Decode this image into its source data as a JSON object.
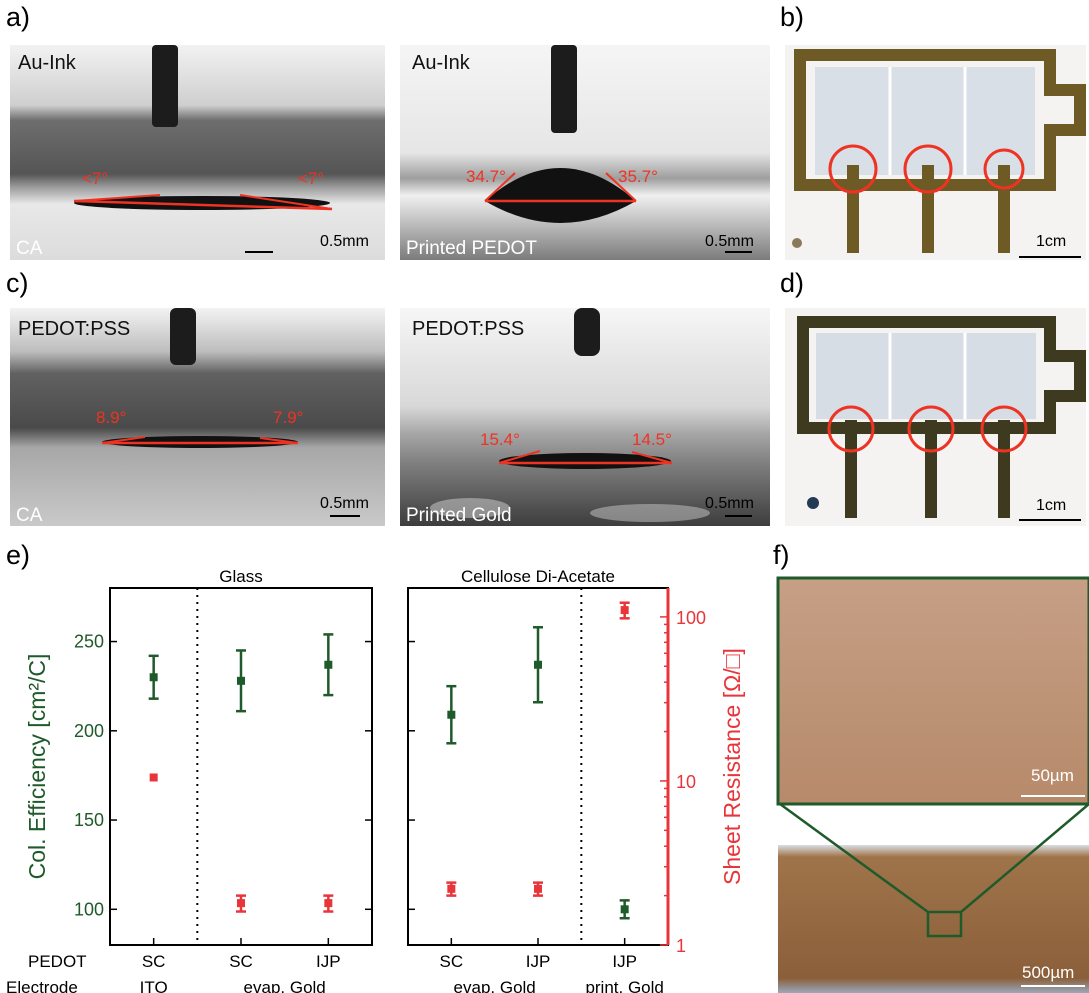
{
  "panels": {
    "a": {
      "letter": "a)",
      "left": {
        "label": "Au-Ink",
        "substrate": "CA",
        "angle_left": "<7°",
        "angle_right": "<7°",
        "scale": "0.5mm"
      },
      "right": {
        "label": "Au-Ink",
        "substrate": "Printed PEDOT",
        "angle_left": "34.7°",
        "angle_right": "35.7°",
        "scale": "0.5mm"
      }
    },
    "b": {
      "letter": "b)",
      "scale": "1cm"
    },
    "c": {
      "letter": "c)",
      "left": {
        "label": "PEDOT:PSS",
        "substrate": "CA",
        "angle_left": "8.9°",
        "angle_right": "7.9°",
        "scale": "0.5mm"
      },
      "right": {
        "label": "PEDOT:PSS",
        "substrate": "Printed Gold",
        "angle_left": "15.4°",
        "angle_right": "14.5°",
        "scale": "0.5mm"
      }
    },
    "d": {
      "letter": "d)",
      "scale": "1cm"
    },
    "e": {
      "letter": "e)"
    },
    "f": {
      "letter": "f)",
      "scale_top": "50µm",
      "scale_bottom": "500µm"
    }
  },
  "colors": {
    "efficiency": "#1f5a2a",
    "resistance": "#e8353a",
    "angle": "#ee3322"
  },
  "chart_data": [
    {
      "type": "scatter",
      "title": "Glass",
      "ylabel": "Col. Efficiency [cm²/C]",
      "ylim": [
        80,
        280
      ],
      "yticks": [
        100,
        150,
        200,
        250
      ],
      "y2label": "Sheet Resistance [Ω/□]",
      "y2scale": "log",
      "y2lim": [
        1,
        150
      ],
      "y2ticks": [
        1,
        10,
        100
      ],
      "row_labels": [
        "PEDOT",
        "Electrode"
      ],
      "categories": [
        {
          "pedot": "SC",
          "electrode": "ITO"
        },
        {
          "pedot": "SC",
          "electrode": "evap. Gold"
        },
        {
          "pedot": "IJP",
          "electrode": ""
        }
      ],
      "separators_after": [
        0
      ],
      "series": [
        {
          "axis": "left",
          "color": "#1f5a2a",
          "values": [
            230,
            228,
            237
          ],
          "errors": [
            12,
            17,
            17
          ]
        },
        {
          "axis": "right",
          "color": "#e8353a",
          "values": [
            10.5,
            1.8,
            1.8
          ],
          "errors": [
            0,
            0.2,
            0.2
          ]
        }
      ]
    },
    {
      "type": "scatter",
      "title": "Cellulose Di-Acetate",
      "ylim": [
        80,
        280
      ],
      "y2scale": "log",
      "y2lim": [
        1,
        150
      ],
      "categories": [
        {
          "pedot": "SC",
          "electrode": "evap. Gold"
        },
        {
          "pedot": "IJP",
          "electrode": ""
        },
        {
          "pedot": "IJP",
          "electrode": "print. Gold"
        }
      ],
      "separators_after": [
        1
      ],
      "series": [
        {
          "axis": "left",
          "color": "#1f5a2a",
          "values": [
            209,
            237,
            100
          ],
          "errors": [
            16,
            21,
            5
          ]
        },
        {
          "axis": "right",
          "color": "#e8353a",
          "values": [
            2.2,
            2.2,
            110
          ],
          "errors": [
            0.2,
            0.2,
            12
          ]
        }
      ]
    }
  ]
}
